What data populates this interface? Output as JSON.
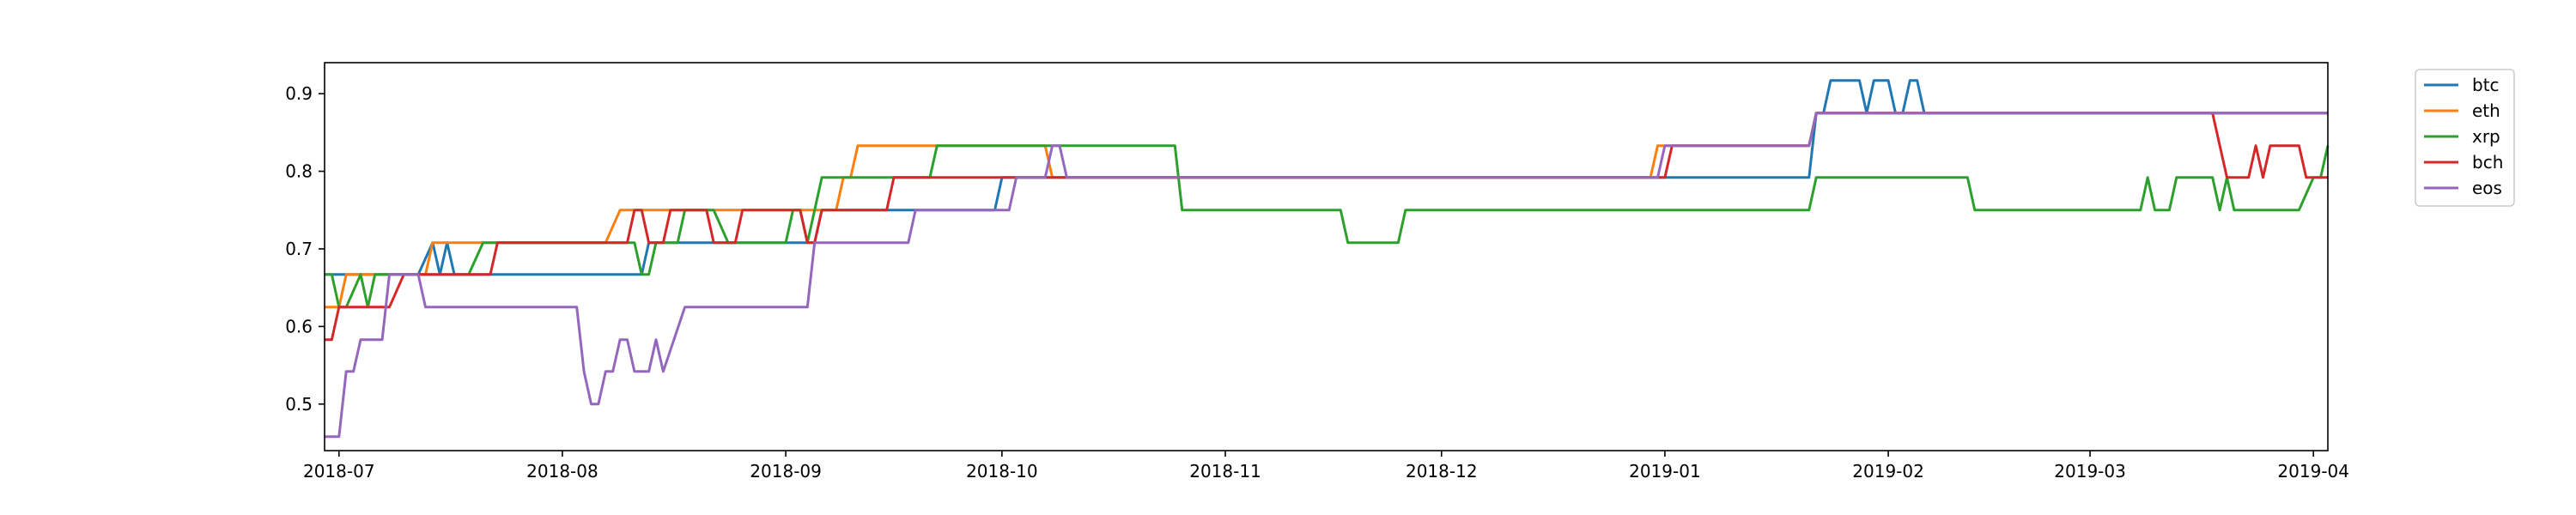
{
  "chart_data": {
    "type": "line",
    "title": "",
    "xlabel": "",
    "ylabel": "",
    "xlim": [
      "2018-06-29",
      "2019-04-03"
    ],
    "ylim": [
      0.44,
      0.94
    ],
    "grid": false,
    "legend_position": "upper right, outside the plot area",
    "x_ticks": [
      "2018-07",
      "2018-08",
      "2018-09",
      "2018-10",
      "2018-11",
      "2018-12",
      "2019-01",
      "2019-02",
      "2019-03",
      "2019-04"
    ],
    "y_ticks": [
      "0.5",
      "0.6",
      "0.7",
      "0.8",
      "0.9"
    ],
    "series": [
      {
        "name": "btc",
        "color": "#1f77b4",
        "points": [
          [
            "2018-06-29",
            0.667
          ],
          [
            "2018-07-12",
            0.667
          ],
          [
            "2018-07-14",
            0.708
          ],
          [
            "2018-07-15",
            0.667
          ],
          [
            "2018-07-16",
            0.708
          ],
          [
            "2018-07-17",
            0.667
          ],
          [
            "2018-08-12",
            0.667
          ],
          [
            "2018-08-13",
            0.708
          ],
          [
            "2018-09-05",
            0.708
          ],
          [
            "2018-09-06",
            0.75
          ],
          [
            "2018-09-30",
            0.75
          ],
          [
            "2018-10-01",
            0.792
          ],
          [
            "2019-01-21",
            0.792
          ],
          [
            "2019-01-22",
            0.875
          ],
          [
            "2019-01-23",
            0.875
          ],
          [
            "2019-01-24",
            0.917
          ],
          [
            "2019-01-28",
            0.917
          ],
          [
            "2019-01-29",
            0.875
          ],
          [
            "2019-01-30",
            0.917
          ],
          [
            "2019-02-01",
            0.917
          ],
          [
            "2019-02-02",
            0.875
          ],
          [
            "2019-02-03",
            0.875
          ],
          [
            "2019-02-04",
            0.917
          ],
          [
            "2019-02-05",
            0.917
          ],
          [
            "2019-02-06",
            0.875
          ],
          [
            "2019-04-03",
            0.875
          ]
        ]
      },
      {
        "name": "eth",
        "color": "#ff7f0e",
        "points": [
          [
            "2018-06-29",
            0.625
          ],
          [
            "2018-07-01",
            0.625
          ],
          [
            "2018-07-02",
            0.667
          ],
          [
            "2018-07-13",
            0.667
          ],
          [
            "2018-07-14",
            0.708
          ],
          [
            "2018-08-07",
            0.708
          ],
          [
            "2018-08-09",
            0.75
          ],
          [
            "2018-09-08",
            0.75
          ],
          [
            "2018-09-09",
            0.792
          ],
          [
            "2018-09-10",
            0.792
          ],
          [
            "2018-09-11",
            0.833
          ],
          [
            "2018-10-07",
            0.833
          ],
          [
            "2018-10-08",
            0.792
          ],
          [
            "2018-12-30",
            0.792
          ],
          [
            "2018-12-31",
            0.833
          ],
          [
            "2019-01-21",
            0.833
          ],
          [
            "2019-01-22",
            0.875
          ],
          [
            "2019-04-03",
            0.875
          ]
        ]
      },
      {
        "name": "xrp",
        "color": "#2ca02c",
        "points": [
          [
            "2018-06-29",
            0.667
          ],
          [
            "2018-06-30",
            0.667
          ],
          [
            "2018-07-01",
            0.625
          ],
          [
            "2018-07-02",
            0.625
          ],
          [
            "2018-07-04",
            0.667
          ],
          [
            "2018-07-05",
            0.625
          ],
          [
            "2018-07-06",
            0.667
          ],
          [
            "2018-07-19",
            0.667
          ],
          [
            "2018-07-21",
            0.708
          ],
          [
            "2018-08-11",
            0.708
          ],
          [
            "2018-08-12",
            0.667
          ],
          [
            "2018-08-13",
            0.667
          ],
          [
            "2018-08-14",
            0.708
          ],
          [
            "2018-08-17",
            0.708
          ],
          [
            "2018-08-18",
            0.75
          ],
          [
            "2018-08-22",
            0.75
          ],
          [
            "2018-08-24",
            0.708
          ],
          [
            "2018-09-01",
            0.708
          ],
          [
            "2018-09-02",
            0.75
          ],
          [
            "2018-09-03",
            0.75
          ],
          [
            "2018-09-04",
            0.708
          ],
          [
            "2018-09-05",
            0.75
          ],
          [
            "2018-09-06",
            0.792
          ],
          [
            "2018-09-21",
            0.792
          ],
          [
            "2018-09-22",
            0.833
          ],
          [
            "2018-10-25",
            0.833
          ],
          [
            "2018-10-26",
            0.75
          ],
          [
            "2018-11-17",
            0.75
          ],
          [
            "2018-11-18",
            0.708
          ],
          [
            "2018-11-25",
            0.708
          ],
          [
            "2018-11-26",
            0.75
          ],
          [
            "2019-01-21",
            0.75
          ],
          [
            "2019-01-22",
            0.792
          ],
          [
            "2019-02-12",
            0.792
          ],
          [
            "2019-02-13",
            0.75
          ],
          [
            "2019-03-08",
            0.75
          ],
          [
            "2019-03-09",
            0.792
          ],
          [
            "2019-03-10",
            0.75
          ],
          [
            "2019-03-12",
            0.75
          ],
          [
            "2019-03-13",
            0.792
          ],
          [
            "2019-03-18",
            0.792
          ],
          [
            "2019-03-19",
            0.75
          ],
          [
            "2019-03-20",
            0.792
          ],
          [
            "2019-03-21",
            0.75
          ],
          [
            "2019-03-30",
            0.75
          ],
          [
            "2019-04-01",
            0.792
          ],
          [
            "2019-04-02",
            0.792
          ],
          [
            "2019-04-03",
            0.833
          ]
        ]
      },
      {
        "name": "bch",
        "color": "#d62728",
        "points": [
          [
            "2018-06-29",
            0.583
          ],
          [
            "2018-06-30",
            0.583
          ],
          [
            "2018-07-01",
            0.625
          ],
          [
            "2018-07-08",
            0.625
          ],
          [
            "2018-07-10",
            0.667
          ],
          [
            "2018-07-22",
            0.667
          ],
          [
            "2018-07-23",
            0.708
          ],
          [
            "2018-08-10",
            0.708
          ],
          [
            "2018-08-11",
            0.75
          ],
          [
            "2018-08-12",
            0.75
          ],
          [
            "2018-08-13",
            0.708
          ],
          [
            "2018-08-15",
            0.708
          ],
          [
            "2018-08-16",
            0.75
          ],
          [
            "2018-08-21",
            0.75
          ],
          [
            "2018-08-22",
            0.708
          ],
          [
            "2018-08-25",
            0.708
          ],
          [
            "2018-08-26",
            0.75
          ],
          [
            "2018-09-03",
            0.75
          ],
          [
            "2018-09-04",
            0.708
          ],
          [
            "2018-09-05",
            0.708
          ],
          [
            "2018-09-06",
            0.75
          ],
          [
            "2018-09-15",
            0.75
          ],
          [
            "2018-09-16",
            0.792
          ],
          [
            "2018-12-31",
            0.792
          ],
          [
            "2019-01-01",
            0.792
          ],
          [
            "2019-01-02",
            0.833
          ],
          [
            "2019-01-21",
            0.833
          ],
          [
            "2019-01-22",
            0.875
          ],
          [
            "2019-03-18",
            0.875
          ],
          [
            "2019-03-20",
            0.792
          ],
          [
            "2019-03-23",
            0.792
          ],
          [
            "2019-03-24",
            0.833
          ],
          [
            "2019-03-25",
            0.792
          ],
          [
            "2019-03-26",
            0.833
          ],
          [
            "2019-03-30",
            0.833
          ],
          [
            "2019-03-31",
            0.792
          ],
          [
            "2019-04-03",
            0.792
          ]
        ]
      },
      {
        "name": "eos",
        "color": "#9467bd",
        "points": [
          [
            "2018-06-29",
            0.458
          ],
          [
            "2018-07-01",
            0.458
          ],
          [
            "2018-07-02",
            0.542
          ],
          [
            "2018-07-03",
            0.542
          ],
          [
            "2018-07-04",
            0.583
          ],
          [
            "2018-07-07",
            0.583
          ],
          [
            "2018-07-08",
            0.667
          ],
          [
            "2018-07-12",
            0.667
          ],
          [
            "2018-07-13",
            0.625
          ],
          [
            "2018-08-03",
            0.625
          ],
          [
            "2018-08-04",
            0.542
          ],
          [
            "2018-08-05",
            0.5
          ],
          [
            "2018-08-06",
            0.5
          ],
          [
            "2018-08-07",
            0.542
          ],
          [
            "2018-08-08",
            0.542
          ],
          [
            "2018-08-09",
            0.583
          ],
          [
            "2018-08-10",
            0.583
          ],
          [
            "2018-08-11",
            0.542
          ],
          [
            "2018-08-13",
            0.542
          ],
          [
            "2018-08-14",
            0.583
          ],
          [
            "2018-08-15",
            0.542
          ],
          [
            "2018-08-18",
            0.625
          ],
          [
            "2018-09-04",
            0.625
          ],
          [
            "2018-09-05",
            0.708
          ],
          [
            "2018-09-18",
            0.708
          ],
          [
            "2018-09-19",
            0.75
          ],
          [
            "2018-10-02",
            0.75
          ],
          [
            "2018-10-03",
            0.792
          ],
          [
            "2018-10-07",
            0.792
          ],
          [
            "2018-10-08",
            0.833
          ],
          [
            "2018-10-09",
            0.833
          ],
          [
            "2018-10-10",
            0.792
          ],
          [
            "2018-12-31",
            0.792
          ],
          [
            "2019-01-01",
            0.833
          ],
          [
            "2019-01-21",
            0.833
          ],
          [
            "2019-01-22",
            0.875
          ],
          [
            "2019-04-03",
            0.875
          ]
        ]
      }
    ]
  }
}
